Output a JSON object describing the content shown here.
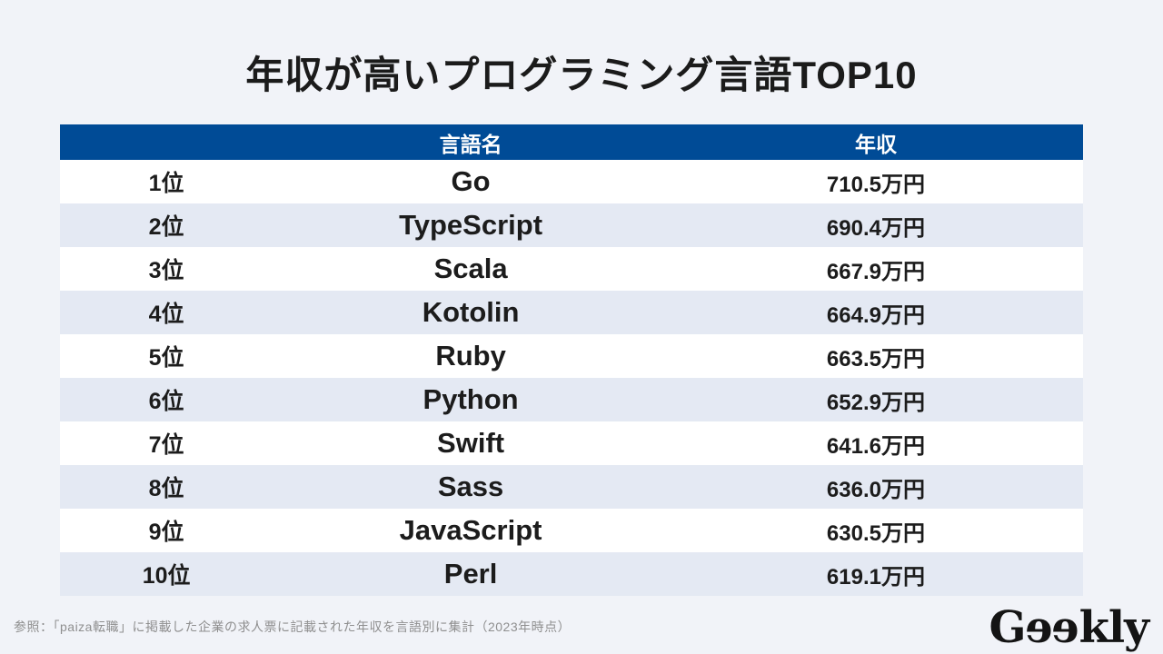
{
  "title": "年収が高いプログラミング言語TOP10",
  "chart_data": {
    "type": "table",
    "title": "年収が高いプログラミング言語TOP10",
    "columns": [
      "",
      "言語名",
      "年収"
    ],
    "rows": [
      [
        "1位",
        "Go",
        "710.5万円"
      ],
      [
        "2位",
        "TypeScript",
        "690.4万円"
      ],
      [
        "3位",
        "Scala",
        "667.9万円"
      ],
      [
        "4位",
        "Kotolin",
        "664.9万円"
      ],
      [
        "5位",
        "Ruby",
        "663.5万円"
      ],
      [
        "6位",
        "Python",
        "652.9万円"
      ],
      [
        "7位",
        "Swift",
        "641.6万円"
      ],
      [
        "8位",
        "Sass",
        "636.0万円"
      ],
      [
        "9位",
        "JavaScript",
        "630.5万円"
      ],
      [
        "10位",
        "Perl",
        "619.1万円"
      ]
    ],
    "income_man_yen": [
      710.5,
      690.4,
      667.9,
      664.9,
      663.5,
      652.9,
      641.6,
      636.0,
      630.5,
      619.1
    ],
    "legend": "none",
    "notes": "ranking table, alternating row stripes"
  },
  "source_note": "参照：「paiza転職」に掲載した企業の求人票に記載された年収を言語別に集計（2023年時点）",
  "logo": {
    "char1": "G",
    "char2": "e",
    "char3": "e",
    "char4": "kly"
  },
  "colors": {
    "page_bg": "#F1F3F8",
    "header_bg": "#004B96",
    "header_text": "#FFFFFF",
    "row_bg": "#FFFFFF",
    "row_alt_bg": "#E4E9F3",
    "body_text": "#1C1C1C",
    "note_text": "#8F8F8F",
    "logo_text": "#141414"
  }
}
